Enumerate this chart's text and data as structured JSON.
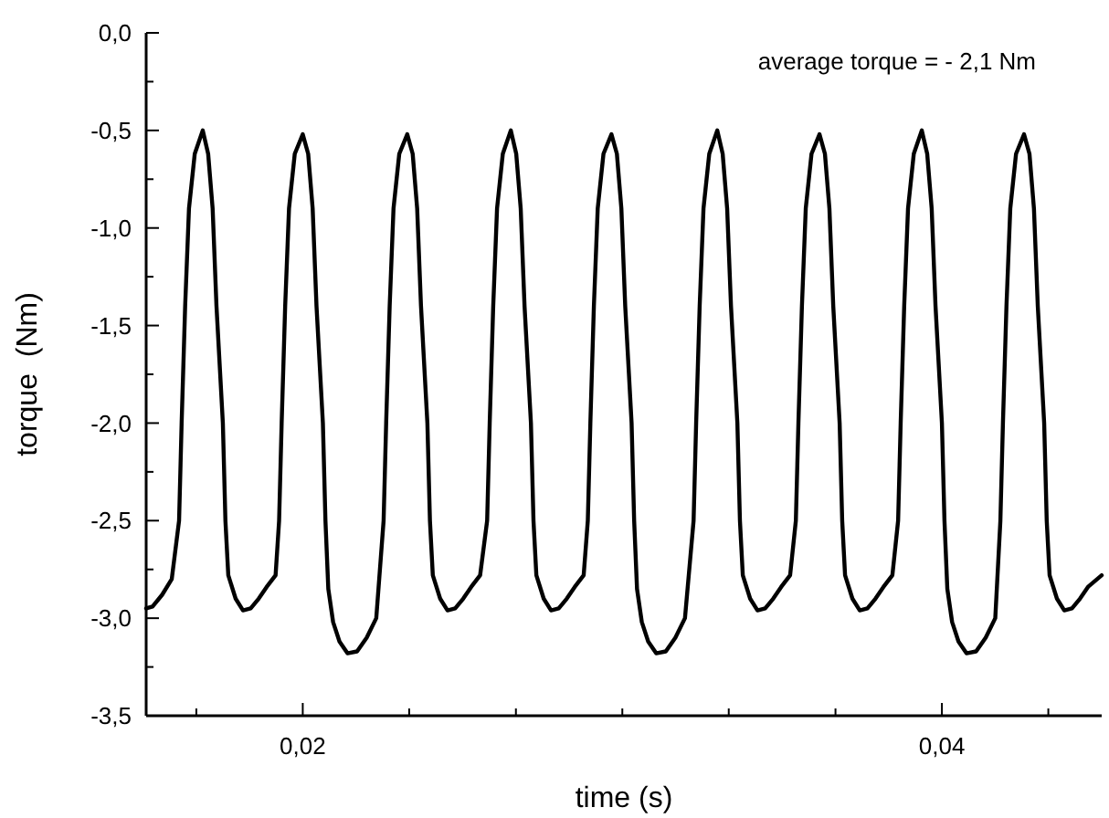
{
  "chart_data": {
    "type": "line",
    "xlabel": "time (s)",
    "ylabel": "torque  (Nm)",
    "annotations": [
      "average torque = - 2,1 Nm"
    ],
    "xlim": [
      0.0151,
      0.045
    ],
    "xticks": [
      {
        "value": 0.01667,
        "label": null
      },
      {
        "value": 0.02,
        "label": "0,02"
      },
      {
        "value": 0.02333,
        "label": null
      },
      {
        "value": 0.02667,
        "label": null
      },
      {
        "value": 0.03,
        "label": null
      },
      {
        "value": 0.03333,
        "label": null
      },
      {
        "value": 0.03667,
        "label": null
      },
      {
        "value": 0.04,
        "label": "0,04"
      },
      {
        "value": 0.04333,
        "label": null
      }
    ],
    "ylim": [
      -3.5,
      0
    ],
    "yticks": [
      {
        "value": -3.5,
        "label": "-3,5"
      },
      {
        "value": -3.25,
        "label": null
      },
      {
        "value": -3,
        "label": "-3,0"
      },
      {
        "value": -2.75,
        "label": null
      },
      {
        "value": -2.5,
        "label": "-2,5"
      },
      {
        "value": -2.25,
        "label": null
      },
      {
        "value": -2,
        "label": "-2,0"
      },
      {
        "value": -1.75,
        "label": null
      },
      {
        "value": -1.5,
        "label": "-1,5"
      },
      {
        "value": -1.25,
        "label": null
      },
      {
        "value": -1,
        "label": "-1,0"
      },
      {
        "value": -0.75,
        "label": null
      },
      {
        "value": -0.5,
        "label": "-0,5"
      },
      {
        "value": -0.25,
        "label": null
      },
      {
        "value": 0,
        "label": "0,0"
      }
    ],
    "grid": false,
    "marker": "none",
    "line_style": "solid",
    "series": [
      {
        "color": "#000000",
        "x": [
          0.0151,
          0.0153,
          0.0156,
          0.0159,
          0.01613,
          0.01621,
          0.01632,
          0.01644,
          0.01662,
          0.01687,
          0.01704,
          0.01718,
          0.0173,
          0.0175,
          0.01758,
          0.01767,
          0.0179,
          0.01813,
          0.01837,
          0.01862,
          0.01887,
          0.01915,
          0.01926,
          0.01934,
          0.01945,
          0.01957,
          0.01975,
          0.02,
          0.02017,
          0.02031,
          0.02043,
          0.02063,
          0.02071,
          0.0208,
          0.02095,
          0.02115,
          0.0214,
          0.0217,
          0.022,
          0.0223,
          0.02253,
          0.02261,
          0.02272,
          0.02284,
          0.02302,
          0.02327,
          0.02344,
          0.02358,
          0.0237,
          0.0239,
          0.02398,
          0.02407,
          0.0243,
          0.02453,
          0.02477,
          0.02502,
          0.02527,
          0.02555,
          0.02577,
          0.02585,
          0.02596,
          0.02608,
          0.02626,
          0.02651,
          0.02668,
          0.02682,
          0.02694,
          0.02714,
          0.02722,
          0.02731,
          0.02754,
          0.02777,
          0.02801,
          0.02826,
          0.02851,
          0.02879,
          0.02892,
          0.029,
          0.02911,
          0.02923,
          0.02941,
          0.02966,
          0.02983,
          0.02997,
          0.03009,
          0.03029,
          0.03037,
          0.03046,
          0.03061,
          0.03081,
          0.03106,
          0.03136,
          0.03166,
          0.03196,
          0.03223,
          0.03231,
          0.03242,
          0.03254,
          0.03272,
          0.03297,
          0.03314,
          0.03328,
          0.0334,
          0.0336,
          0.03368,
          0.03377,
          0.034,
          0.03423,
          0.03447,
          0.03472,
          0.03497,
          0.03525,
          0.03543,
          0.03551,
          0.03562,
          0.03574,
          0.03592,
          0.03617,
          0.03634,
          0.03648,
          0.0366,
          0.0368,
          0.03688,
          0.03697,
          0.0372,
          0.03743,
          0.03767,
          0.03792,
          0.03817,
          0.03845,
          0.03863,
          0.03871,
          0.03882,
          0.03894,
          0.03912,
          0.03937,
          0.03954,
          0.03968,
          0.0398,
          0.04,
          0.04008,
          0.04017,
          0.04032,
          0.04052,
          0.04077,
          0.04107,
          0.04137,
          0.04167,
          0.04183,
          0.04191,
          0.04202,
          0.04214,
          0.04232,
          0.04257,
          0.04274,
          0.04288,
          0.043,
          0.0432,
          0.04328,
          0.04337,
          0.0436,
          0.04383,
          0.04407,
          0.04432,
          0.04457,
          0.045
        ],
        "values": [
          -2.95,
          -2.94,
          -2.88,
          -2.8,
          -2.5,
          -2.0,
          -1.4,
          -0.9,
          -0.62,
          -0.5,
          -0.62,
          -0.9,
          -1.4,
          -2.0,
          -2.5,
          -2.78,
          -2.9,
          -2.96,
          -2.95,
          -2.9,
          -2.84,
          -2.78,
          -2.5,
          -2.0,
          -1.4,
          -0.9,
          -0.62,
          -0.52,
          -0.62,
          -0.9,
          -1.4,
          -2.0,
          -2.5,
          -2.85,
          -3.02,
          -3.12,
          -3.18,
          -3.17,
          -3.1,
          -3.0,
          -2.5,
          -2.0,
          -1.4,
          -0.9,
          -0.62,
          -0.52,
          -0.62,
          -0.9,
          -1.4,
          -2.0,
          -2.5,
          -2.78,
          -2.9,
          -2.96,
          -2.95,
          -2.9,
          -2.84,
          -2.78,
          -2.5,
          -2.0,
          -1.4,
          -0.9,
          -0.62,
          -0.5,
          -0.62,
          -0.9,
          -1.4,
          -2.0,
          -2.5,
          -2.78,
          -2.9,
          -2.96,
          -2.95,
          -2.9,
          -2.84,
          -2.78,
          -2.5,
          -2.0,
          -1.4,
          -0.9,
          -0.62,
          -0.52,
          -0.62,
          -0.9,
          -1.4,
          -2.0,
          -2.5,
          -2.85,
          -3.02,
          -3.12,
          -3.18,
          -3.17,
          -3.1,
          -3.0,
          -2.5,
          -2.0,
          -1.4,
          -0.9,
          -0.62,
          -0.5,
          -0.62,
          -0.9,
          -1.4,
          -2.0,
          -2.5,
          -2.78,
          -2.9,
          -2.96,
          -2.95,
          -2.9,
          -2.84,
          -2.78,
          -2.5,
          -2.0,
          -1.4,
          -0.9,
          -0.62,
          -0.52,
          -0.62,
          -0.9,
          -1.4,
          -2.0,
          -2.5,
          -2.78,
          -2.9,
          -2.96,
          -2.95,
          -2.9,
          -2.84,
          -2.78,
          -2.5,
          -2.0,
          -1.4,
          -0.9,
          -0.62,
          -0.5,
          -0.62,
          -0.9,
          -1.4,
          -2.0,
          -2.5,
          -2.85,
          -3.02,
          -3.12,
          -3.18,
          -3.17,
          -3.1,
          -3.0,
          -2.5,
          -2.0,
          -1.4,
          -0.9,
          -0.62,
          -0.52,
          -0.62,
          -0.9,
          -1.4,
          -2.0,
          -2.5,
          -2.78,
          -2.9,
          -2.96,
          -2.95,
          -2.9,
          -2.84,
          -2.78
        ]
      }
    ]
  }
}
